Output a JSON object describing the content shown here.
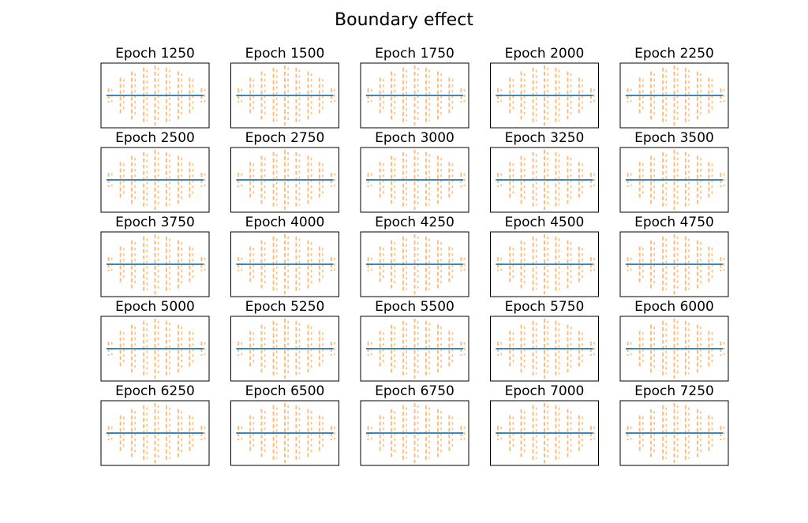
{
  "figure": {
    "title": "Boundary effect"
  },
  "colors": {
    "target": "#ffbb78",
    "boundary": "#1f77b4",
    "frame": "#000000",
    "background": "#ffffff"
  },
  "grid": {
    "rows": 5,
    "cols": 5
  },
  "chart_data": {
    "type": "line",
    "xlim": [
      -1,
      1
    ],
    "ylim": [
      -1,
      1
    ],
    "grid": false,
    "legend": "none",
    "shared_series": {
      "target": {
        "x": [
          -0.86,
          -0.64,
          -0.43,
          -0.21,
          0.0,
          0.21,
          0.43,
          0.64,
          0.86
        ],
        "y_upper": [
          0.22,
          0.55,
          0.74,
          0.86,
          0.93,
          0.86,
          0.74,
          0.55,
          0.22
        ],
        "y_lower": [
          -0.22,
          -0.55,
          -0.74,
          -0.86,
          -0.93,
          -0.86,
          -0.74,
          -0.55,
          -0.22
        ]
      },
      "boundary": {
        "x": [
          -0.9,
          0.9
        ],
        "y": [
          0.0,
          0.0
        ]
      }
    },
    "panels": [
      {
        "title": "Epoch 1250"
      },
      {
        "title": "Epoch 1500"
      },
      {
        "title": "Epoch 1750"
      },
      {
        "title": "Epoch 2000"
      },
      {
        "title": "Epoch 2250"
      },
      {
        "title": "Epoch 2500"
      },
      {
        "title": "Epoch 2750"
      },
      {
        "title": "Epoch 3000"
      },
      {
        "title": "Epoch 3250"
      },
      {
        "title": "Epoch 3500"
      },
      {
        "title": "Epoch 3750"
      },
      {
        "title": "Epoch 4000"
      },
      {
        "title": "Epoch 4250"
      },
      {
        "title": "Epoch 4500"
      },
      {
        "title": "Epoch 4750"
      },
      {
        "title": "Epoch 5000"
      },
      {
        "title": "Epoch 5250"
      },
      {
        "title": "Epoch 5500"
      },
      {
        "title": "Epoch 5750"
      },
      {
        "title": "Epoch 6000"
      },
      {
        "title": "Epoch 6250"
      },
      {
        "title": "Epoch 6500"
      },
      {
        "title": "Epoch 6750"
      },
      {
        "title": "Epoch 7000"
      },
      {
        "title": "Epoch 7250"
      }
    ]
  }
}
